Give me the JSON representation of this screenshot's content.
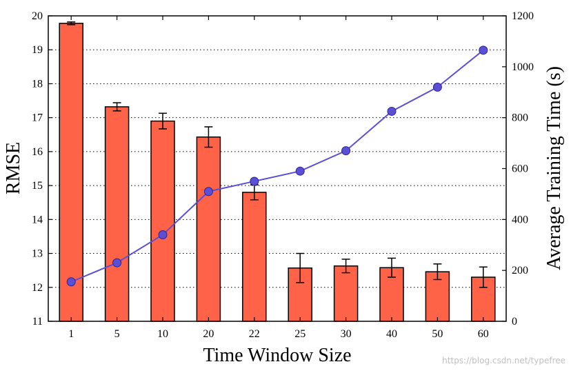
{
  "chart_data": {
    "type": "bar",
    "categories": [
      "1",
      "5",
      "10",
      "20",
      "22",
      "25",
      "30",
      "40",
      "50",
      "60"
    ],
    "xlabel": "Time Window Size",
    "grid": "horizontal-dotted",
    "legend": "none",
    "y_left": {
      "label": "RMSE",
      "range": [
        11,
        20
      ],
      "ticks": [
        "11",
        "12",
        "13",
        "14",
        "15",
        "16",
        "17",
        "18",
        "19",
        "20"
      ]
    },
    "y_right": {
      "label": "Average Training Time (s)",
      "range": [
        0,
        1200
      ],
      "ticks": [
        "0",
        "200",
        "400",
        "600",
        "800",
        "1000",
        "1200"
      ]
    },
    "series": [
      {
        "type": "bar",
        "axis": "left",
        "color": "#ff6347",
        "values": [
          19.78,
          17.32,
          16.9,
          16.43,
          14.8,
          12.57,
          12.63,
          12.58,
          12.46,
          12.3
        ],
        "errors": [
          0.04,
          0.12,
          0.23,
          0.3,
          0.22,
          0.43,
          0.2,
          0.28,
          0.23,
          0.3
        ]
      },
      {
        "type": "line",
        "axis": "right",
        "color": "#5b4fd6",
        "values": [
          155,
          230,
          340,
          510,
          550,
          590,
          670,
          825,
          920,
          1065
        ]
      }
    ]
  },
  "watermark": "https://blog.csdn.net/typefree"
}
